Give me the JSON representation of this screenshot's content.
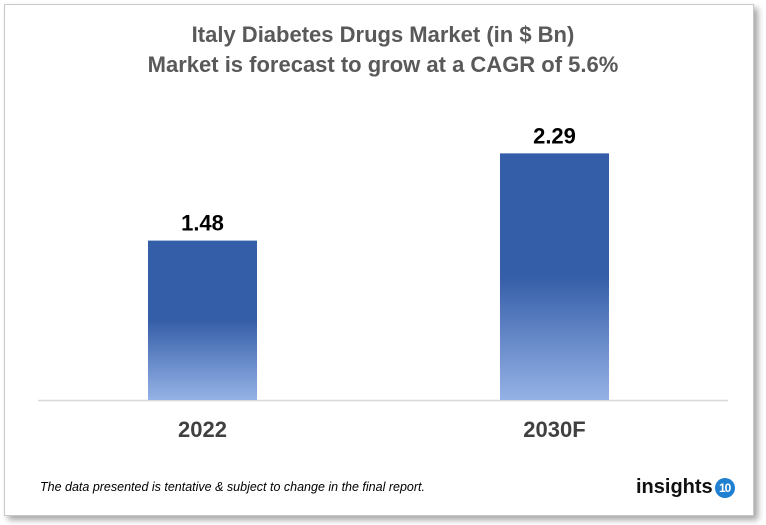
{
  "chart_data": {
    "type": "bar",
    "title": "Italy Diabetes Drugs Market (in $ Bn)",
    "subtitle": "Market is forecast to grow at a CAGR of 5.6%",
    "categories": [
      "2022",
      "2030F"
    ],
    "values": [
      1.48,
      2.29
    ],
    "data_labels": [
      "1.48",
      "2.29"
    ],
    "xlabel": "",
    "ylabel": "",
    "ylim": [
      0,
      2.6
    ],
    "grid": false,
    "bar_color_top": "#355EA8",
    "bar_color_bottom": "#95B2E6"
  },
  "footer": {
    "disclaimer": "The data presented is tentative & subject to change in the final report.",
    "logo_text": "insights",
    "logo_number": "10",
    "logo_badge_color": "#1f7fd0"
  }
}
